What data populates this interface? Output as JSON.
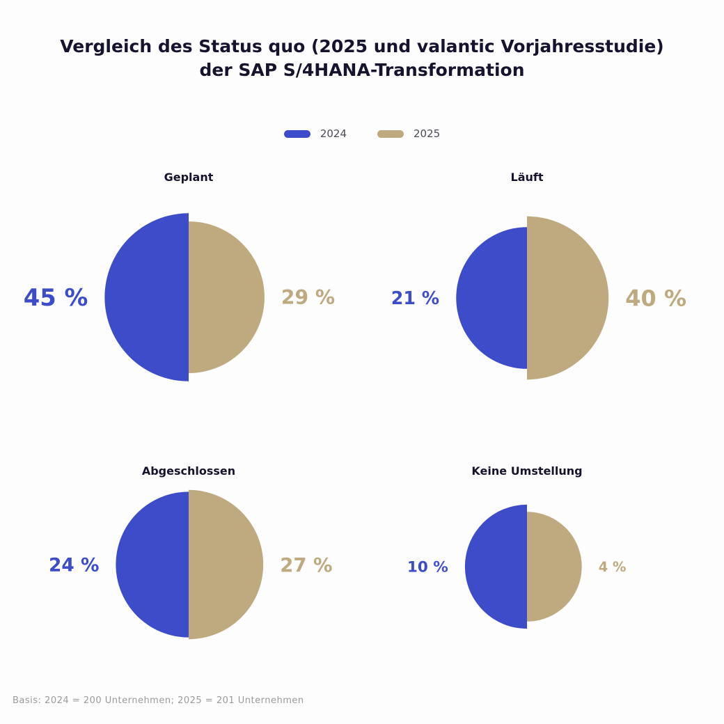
{
  "title_line1": "Vergleich des Status quo (2025 und valantic Vorjahresstudie)",
  "title_line2": "der SAP S/4HANA-Transformation",
  "legend": [
    {
      "label": "2024",
      "color": "#3d4cc9"
    },
    {
      "label": "2025",
      "color": "#bfa97f"
    }
  ],
  "footnote": "Basis: 2024 = 200 Unternehmen; 2025 = 201 Unternehmen",
  "chart_data": {
    "type": "pie",
    "subtype": "paired half-circles sized by value",
    "unit": "%",
    "series": [
      "2024",
      "2025"
    ],
    "categories": [
      "Geplant",
      "Läuft",
      "Abgeschlossen",
      "Keine Umstellung"
    ],
    "panels": [
      {
        "title": "Geplant",
        "values": [
          45,
          29
        ],
        "labels": [
          "45 %",
          "29 %"
        ]
      },
      {
        "title": "Läuft",
        "values": [
          21,
          40
        ],
        "labels": [
          "21 %",
          "40 %"
        ]
      },
      {
        "title": "Abgeschlossen",
        "values": [
          24,
          27
        ],
        "labels": [
          "24 %",
          "27 %"
        ]
      },
      {
        "title": "Keine Umstellung",
        "values": [
          10,
          4
        ],
        "labels": [
          "10 %",
          "4 %"
        ]
      }
    ]
  }
}
